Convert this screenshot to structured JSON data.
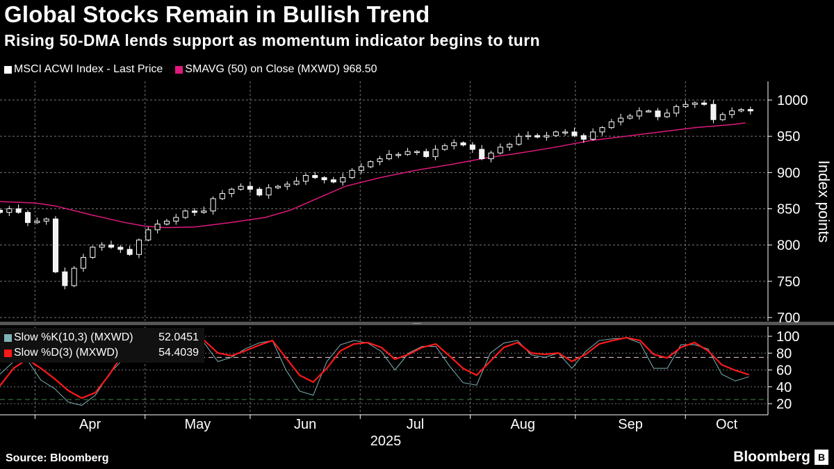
{
  "title": "Global Stocks Remain in Bullish Trend",
  "subtitle": "Rising 50-DMA lends support as momentum indicator begins to turn",
  "source": "Source: Bloomberg",
  "brand": "Bloomberg",
  "colors": {
    "price": "#ffffff",
    "sma": "#e0197d",
    "k": "#7fb3b8",
    "d": "#ff1a1a",
    "bg": "#000000",
    "grid": "#777777"
  },
  "chart_data": [
    {
      "type": "candlestick",
      "legend": [
        {
          "label": "MSCI ACWI Index - Last Price"
        },
        {
          "label": "SMAVG (50)  on Close (MXWD) 968.50"
        }
      ],
      "ylabel": "Index points",
      "ylim": [
        690,
        1015
      ],
      "yticks": [
        700,
        750,
        800,
        850,
        900,
        950,
        1000
      ],
      "x_day_range": [
        0,
        153.5
      ],
      "price_day_range": [
        0,
        150
      ],
      "closes": [
        845,
        850,
        845,
        831,
        833,
        836,
        763,
        744,
        768,
        783,
        797,
        800,
        797,
        794,
        787,
        807,
        821,
        829,
        833,
        838,
        847,
        845,
        847,
        864,
        871,
        877,
        881,
        877,
        869,
        879,
        881,
        884,
        888,
        896,
        893,
        890,
        887,
        893,
        903,
        908,
        915,
        919,
        925,
        925,
        929,
        929,
        922,
        932,
        937,
        941,
        938,
        932,
        919,
        927,
        935,
        939,
        950,
        951,
        949,
        951,
        956,
        956,
        951,
        946,
        956,
        962,
        970,
        975,
        978,
        985,
        985,
        977,
        982,
        991,
        994,
        996,
        994,
        973,
        980,
        985,
        987,
        985
      ],
      "sma50": [
        [
          0,
          860
        ],
        [
          7,
          858
        ],
        [
          11,
          854
        ],
        [
          18,
          842
        ],
        [
          25,
          831
        ],
        [
          29,
          826
        ],
        [
          33,
          824
        ],
        [
          39,
          825
        ],
        [
          46,
          831
        ],
        [
          53,
          838
        ],
        [
          58,
          848
        ],
        [
          64,
          866
        ],
        [
          69,
          881
        ],
        [
          76,
          893
        ],
        [
          83,
          903
        ],
        [
          90,
          911
        ],
        [
          97,
          920
        ],
        [
          104,
          927
        ],
        [
          111,
          935
        ],
        [
          118,
          944
        ],
        [
          125,
          950
        ],
        [
          132,
          956
        ],
        [
          139,
          962
        ],
        [
          146,
          966
        ],
        [
          149,
          968.5
        ]
      ]
    },
    {
      "type": "line",
      "legend": [
        {
          "label": "Slow %K(10,3) (MXWD)",
          "value": "52.0451"
        },
        {
          "label": "Slow %D(3) (MXWD)",
          "value": "54.4039"
        }
      ],
      "ylim": [
        10,
        108
      ],
      "yticks": [
        20,
        40,
        60,
        80,
        100
      ],
      "bands": [
        75,
        25
      ],
      "day_range": [
        0,
        149.7
      ],
      "k": [
        55,
        70,
        72,
        48,
        38,
        22,
        18,
        30,
        55,
        72,
        85,
        98,
        100,
        100,
        100,
        92,
        70,
        75,
        85,
        92,
        95,
        60,
        35,
        30,
        70,
        90,
        95,
        92,
        82,
        60,
        80,
        88,
        88,
        65,
        45,
        42,
        80,
        92,
        95,
        78,
        75,
        80,
        62,
        82,
        95,
        97,
        98,
        92,
        62,
        62,
        90,
        90,
        85,
        55,
        47,
        52
      ],
      "d": [
        41.4,
        62,
        72.8,
        62,
        49.7,
        35.7,
        26.6,
        33.2,
        53.8,
        78.5,
        90.9,
        96.7,
        100,
        100,
        100,
        95,
        80.2,
        76.9,
        82.7,
        89.3,
        95,
        74.4,
        53.8,
        45.6,
        62,
        82.7,
        90.9,
        92.6,
        86.8,
        72.8,
        78.5,
        86.8,
        90.9,
        76.9,
        62,
        53.8,
        70.3,
        86.8,
        92.6,
        80.2,
        78.5,
        80.2,
        70.3,
        78.5,
        90.9,
        95,
        98.4,
        95,
        78.5,
        74.4,
        86.8,
        92.6,
        82.7,
        66.2,
        59.6,
        54.4
      ]
    }
  ],
  "xaxis": {
    "month_starts": [
      7,
      29,
      50,
      72,
      94,
      115,
      137
    ],
    "months": [
      "Apr",
      "May",
      "Jun",
      "Jul",
      "Aug",
      "Sep",
      "Oct"
    ],
    "year": "2025"
  }
}
